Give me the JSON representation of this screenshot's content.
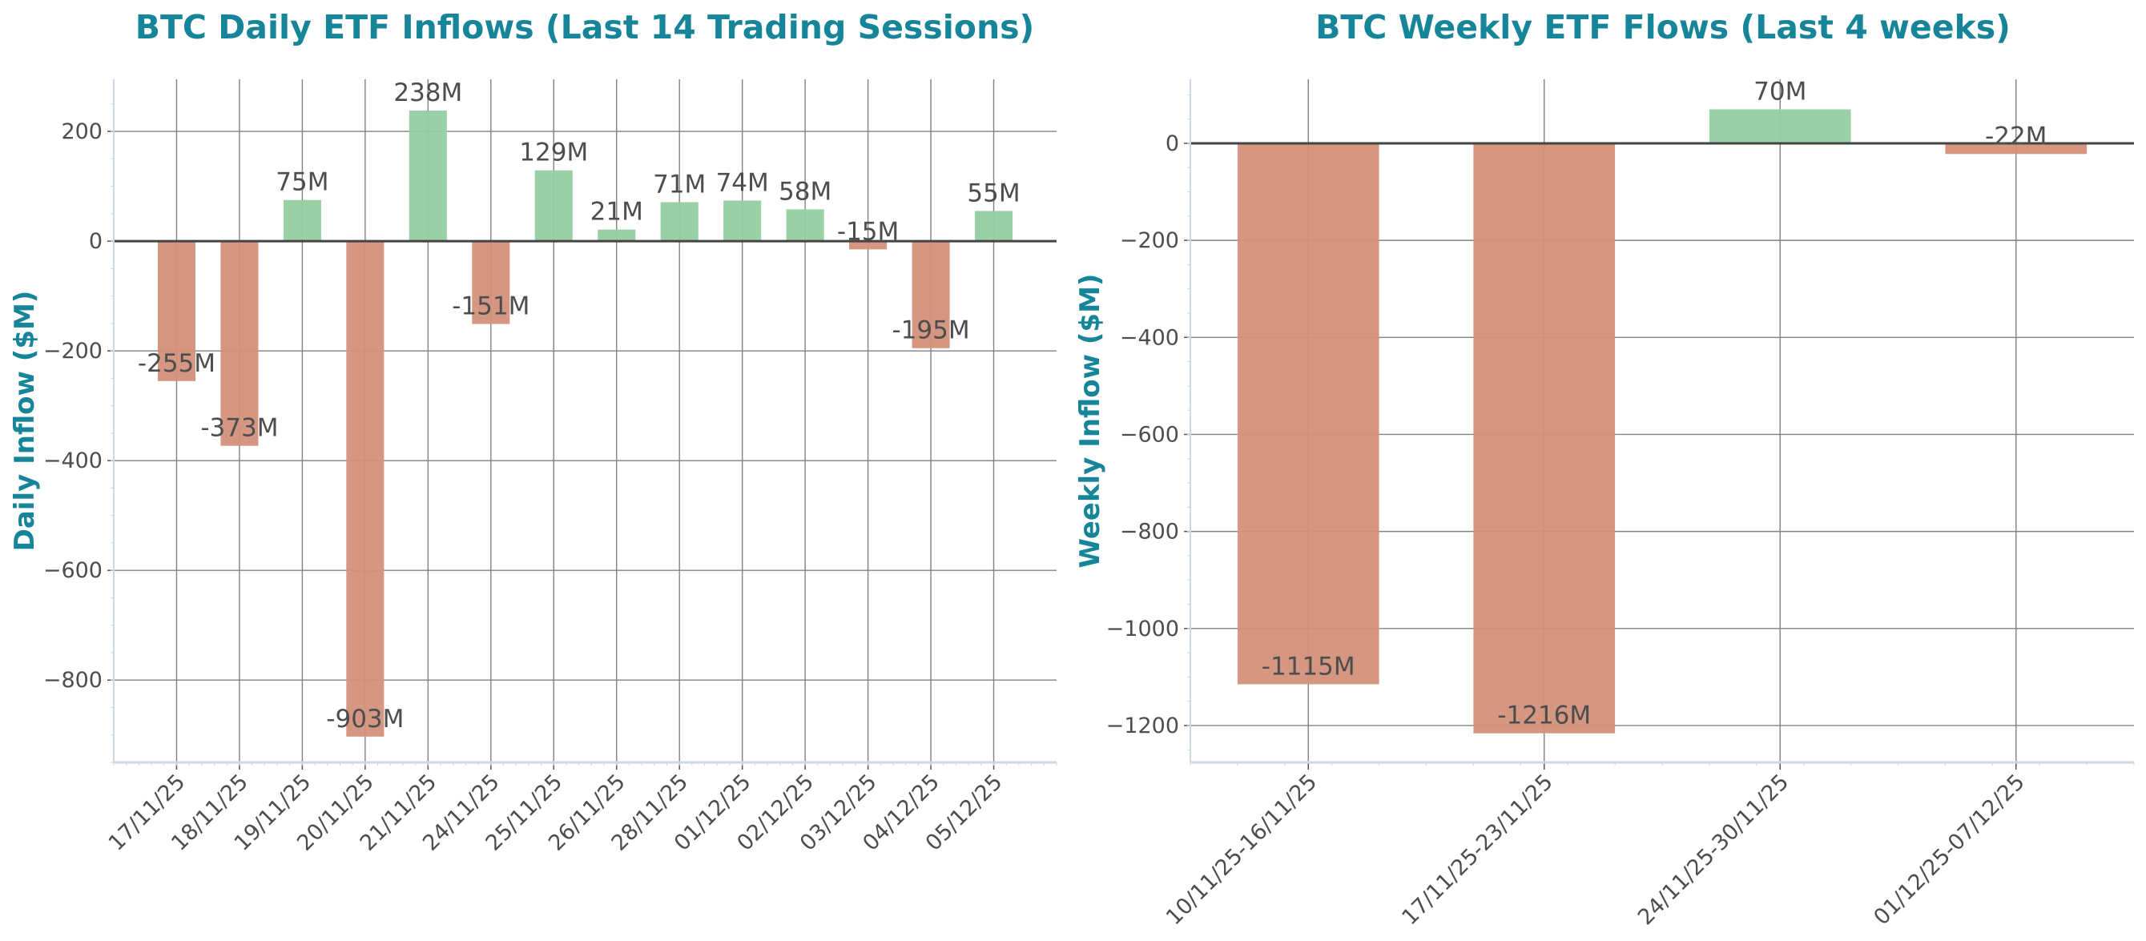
{
  "chart_data": [
    {
      "type": "bar",
      "title": "BTC Daily ETF Inflows (Last 14 Trading Sessions)",
      "xlabel": "",
      "ylabel": "Daily Inflow ($M)",
      "categories": [
        "17/11/25",
        "18/11/25",
        "19/11/25",
        "20/11/25",
        "21/11/25",
        "24/11/25",
        "25/11/25",
        "26/11/25",
        "28/11/25",
        "01/12/25",
        "02/12/25",
        "03/12/25",
        "04/12/25",
        "05/12/25"
      ],
      "values": [
        -255,
        -373,
        75,
        -903,
        238,
        -151,
        129,
        21,
        71,
        74,
        58,
        -15,
        -195,
        55
      ],
      "data_labels": [
        "-255M",
        "-373M",
        "75M",
        "-903M",
        "238M",
        "-151M",
        "129M",
        "21M",
        "71M",
        "74M",
        "58M",
        "-15M",
        "-195M",
        "55M"
      ],
      "yticks": [
        200,
        0,
        -200,
        -400,
        -600,
        -800
      ],
      "ytick_labels": [
        "200",
        "0",
        "−200",
        "−400",
        "−600",
        "−800"
      ],
      "ylim": [
        -950,
        295
      ],
      "grid": true,
      "legend": "none"
    },
    {
      "type": "bar",
      "title": "BTC Weekly ETF Flows (Last 4 weeks)",
      "xlabel": "",
      "ylabel": "Weekly Inflow ($M)",
      "categories": [
        "10/11/25-16/11/25",
        "17/11/25-23/11/25",
        "24/11/25-30/11/25",
        "01/12/25-07/12/25"
      ],
      "values": [
        -1115,
        -1216,
        70,
        -22
      ],
      "data_labels": [
        "-1115M",
        "-1216M",
        "70M",
        "-22M"
      ],
      "yticks": [
        0,
        -200,
        -400,
        -600,
        -800,
        -1000,
        -1200
      ],
      "ytick_labels": [
        "0",
        "−200",
        "−400",
        "−600",
        "−800",
        "−1000",
        "−1200"
      ],
      "ylim": [
        -1276,
        132
      ],
      "grid": true,
      "legend": "none"
    }
  ],
  "colors": {
    "positive": "#93cea1",
    "negative": "#d4917b",
    "title": "#168599",
    "text": "#4d4d4d",
    "zero_line": "#444444",
    "grid": "#808080",
    "spine": "#cfd6e6"
  }
}
